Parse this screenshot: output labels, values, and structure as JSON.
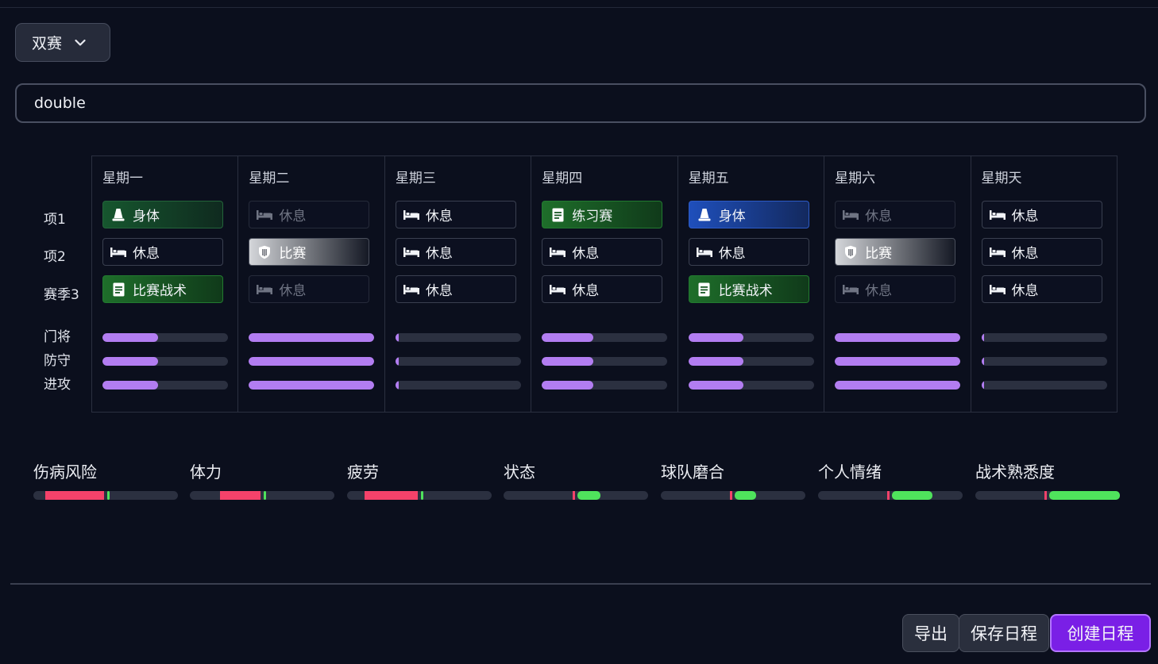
{
  "mode": {
    "selected": "双赛"
  },
  "schedule_name": {
    "value": "double"
  },
  "rows": {
    "item1": "项1",
    "item2": "项2",
    "item3": "赛季3",
    "goalkeeper": "门将",
    "defense": "防守",
    "attack": "进攻"
  },
  "days": [
    {
      "name": "星期一",
      "slots": [
        {
          "label": "身体",
          "type": "body",
          "icon": "cone-icon"
        },
        {
          "label": "休息",
          "type": "rest",
          "icon": "bed-icon"
        },
        {
          "label": "比赛战术",
          "type": "tactics",
          "icon": "clipboard-icon"
        }
      ],
      "levels": [
        0.44,
        0.44,
        0.44
      ]
    },
    {
      "name": "星期二",
      "slots": [
        {
          "label": "休息",
          "type": "rest-dim",
          "icon": "bed-icon"
        },
        {
          "label": "比赛",
          "type": "match",
          "icon": "shield-icon"
        },
        {
          "label": "休息",
          "type": "rest-dim",
          "icon": "bed-icon"
        }
      ],
      "levels": [
        1.0,
        1.0,
        1.0
      ]
    },
    {
      "name": "星期三",
      "slots": [
        {
          "label": "休息",
          "type": "rest",
          "icon": "bed-icon"
        },
        {
          "label": "休息",
          "type": "rest",
          "icon": "bed-icon"
        },
        {
          "label": "休息",
          "type": "rest",
          "icon": "bed-icon"
        }
      ],
      "levels": [
        0.02,
        0.02,
        0.02
      ]
    },
    {
      "name": "星期四",
      "slots": [
        {
          "label": "练习赛",
          "type": "tactics",
          "icon": "clipboard-icon"
        },
        {
          "label": "休息",
          "type": "rest",
          "icon": "bed-icon"
        },
        {
          "label": "休息",
          "type": "rest",
          "icon": "bed-icon"
        }
      ],
      "levels": [
        0.41,
        0.41,
        0.41
      ]
    },
    {
      "name": "星期五",
      "slots": [
        {
          "label": "身体",
          "type": "body-blue",
          "icon": "cone-icon"
        },
        {
          "label": "休息",
          "type": "rest",
          "icon": "bed-icon"
        },
        {
          "label": "比赛战术",
          "type": "tactics",
          "icon": "clipboard-icon"
        }
      ],
      "levels": [
        0.44,
        0.44,
        0.44
      ]
    },
    {
      "name": "星期六",
      "slots": [
        {
          "label": "休息",
          "type": "rest-dim",
          "icon": "bed-icon"
        },
        {
          "label": "比赛",
          "type": "match",
          "icon": "shield-icon"
        },
        {
          "label": "休息",
          "type": "rest-dim",
          "icon": "bed-icon"
        }
      ],
      "levels": [
        1.0,
        1.0,
        1.0
      ]
    },
    {
      "name": "星期天",
      "slots": [
        {
          "label": "休息",
          "type": "rest",
          "icon": "bed-icon"
        },
        {
          "label": "休息",
          "type": "rest",
          "icon": "bed-icon"
        },
        {
          "label": "休息",
          "type": "rest",
          "icon": "bed-icon"
        }
      ],
      "levels": [
        0.02,
        0.02,
        0.02
      ]
    }
  ],
  "stats": [
    {
      "label": "伤病风险",
      "red": [
        0.08,
        0.49
      ],
      "green": null,
      "marker": 0.51
    },
    {
      "label": "体力",
      "red": [
        0.21,
        0.49
      ],
      "green": null,
      "marker": 0.51
    },
    {
      "label": "疲劳",
      "red": [
        0.12,
        0.49
      ],
      "green": null,
      "marker": 0.51
    },
    {
      "label": "状态",
      "red": null,
      "green": [
        0.51,
        0.67
      ],
      "marker": 0.48
    },
    {
      "label": "球队磨合",
      "red": null,
      "green": [
        0.51,
        0.66
      ],
      "marker": 0.48
    },
    {
      "label": "个人情绪",
      "red": null,
      "green": [
        0.51,
        0.79
      ],
      "marker": 0.48
    },
    {
      "label": "战术熟悉度",
      "red": null,
      "green": [
        0.51,
        1.0
      ],
      "marker": 0.48
    }
  ],
  "colors": {
    "accent": "#b27df1",
    "red": "#f5426a",
    "green": "#4fe35c",
    "primary_button": "#7a1fe6"
  },
  "buttons": {
    "export": "导出",
    "save": "保存日程",
    "create": "创建日程"
  }
}
